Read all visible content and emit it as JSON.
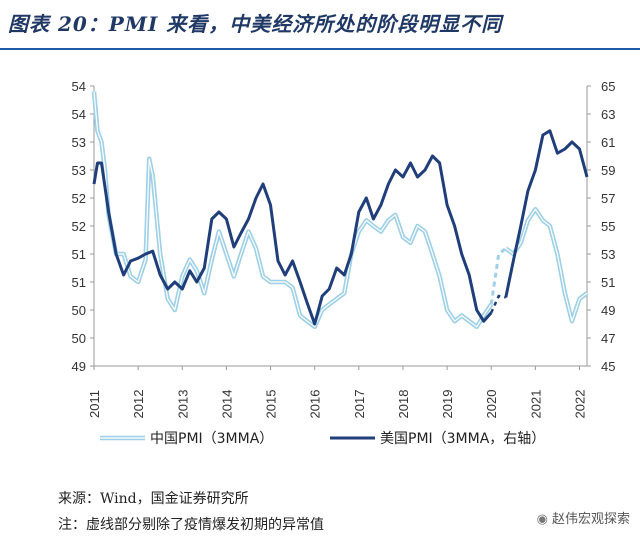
{
  "title": "图表 20：PMI 来看，中美经济所处的阶段明显不同",
  "source": "来源：Wind，国金证券研究所",
  "note": "注：虚线部分剔除了疫情爆发初期的异常值",
  "watermark_account": "赵伟宏观探索",
  "colors": {
    "china": "#9fd0e6",
    "us": "#1f3e7a",
    "title_rule": "#1f5aa6"
  },
  "chart_data": {
    "type": "line",
    "x_ticks": [
      "2011",
      "2012",
      "2013",
      "2014",
      "2015",
      "2016",
      "2017",
      "2018",
      "2019",
      "2020",
      "2021",
      "2022"
    ],
    "left_axis": {
      "ticks": [
        "49",
        "50",
        "50",
        "51",
        "51",
        "52",
        "52",
        "53",
        "53",
        "54",
        "54"
      ],
      "ylim": [
        49,
        54
      ]
    },
    "right_axis": {
      "ticks": [
        "45",
        "47",
        "49",
        "51",
        "53",
        "55",
        "57",
        "59",
        "61",
        "63",
        "65"
      ],
      "ylim": [
        45,
        65
      ]
    },
    "series": [
      {
        "name": "中国PMI（3MMA）",
        "axis": "left",
        "x": [
          2011.0,
          2011.08,
          2011.17,
          2011.25,
          2011.33,
          2011.5,
          2011.67,
          2011.83,
          2012.0,
          2012.17,
          2012.25,
          2012.33,
          2012.5,
          2012.67,
          2012.83,
          2013.0,
          2013.17,
          2013.33,
          2013.5,
          2013.67,
          2013.83,
          2014.0,
          2014.17,
          2014.33,
          2014.5,
          2014.67,
          2014.83,
          2015.0,
          2015.17,
          2015.33,
          2015.5,
          2015.67,
          2015.83,
          2016.0,
          2016.17,
          2016.33,
          2016.5,
          2016.67,
          2016.83,
          2017.0,
          2017.17,
          2017.33,
          2017.5,
          2017.67,
          2017.83,
          2018.0,
          2018.17,
          2018.33,
          2018.5,
          2018.67,
          2018.83,
          2019.0,
          2019.17,
          2019.33,
          2019.5,
          2019.67,
          2019.83,
          2020.0
        ],
        "y": [
          53.9,
          53.2,
          53.0,
          52.5,
          51.7,
          51.0,
          51.0,
          50.6,
          50.5,
          50.9,
          52.7,
          52.4,
          51.0,
          50.2,
          50.0,
          50.6,
          50.9,
          50.7,
          50.3,
          50.9,
          51.4,
          51.0,
          50.6,
          51.0,
          51.4,
          51.1,
          50.6,
          50.5,
          50.5,
          50.5,
          50.4,
          49.9,
          49.8,
          49.7,
          50.0,
          50.1,
          50.2,
          50.3,
          51.0,
          51.4,
          51.6,
          51.5,
          51.4,
          51.6,
          51.7,
          51.3,
          51.2,
          51.5,
          51.4,
          51.0,
          50.6,
          50.0,
          49.8,
          49.9,
          49.8,
          49.7,
          49.9,
          50.1
        ],
        "dashed_x": [
          2020.0,
          2020.17,
          2020.33
        ],
        "dashed_y": [
          50.1,
          51.0,
          51.1
        ],
        "x2": [
          2020.33,
          2020.5,
          2020.67,
          2020.83,
          2021.0,
          2021.17,
          2021.33,
          2021.5,
          2021.67,
          2021.83,
          2022.0,
          2022.17
        ],
        "y2": [
          51.1,
          51.0,
          51.2,
          51.6,
          51.8,
          51.6,
          51.5,
          51.0,
          50.3,
          49.8,
          50.2,
          50.3
        ]
      },
      {
        "name": "美国PMI（3MMA，右轴）",
        "axis": "right",
        "x": [
          2011.0,
          2011.08,
          2011.17,
          2011.33,
          2011.5,
          2011.67,
          2011.83,
          2012.0,
          2012.17,
          2012.33,
          2012.5,
          2012.67,
          2012.83,
          2013.0,
          2013.17,
          2013.33,
          2013.5,
          2013.67,
          2013.83,
          2014.0,
          2014.17,
          2014.33,
          2014.5,
          2014.67,
          2014.83,
          2015.0,
          2015.17,
          2015.33,
          2015.5,
          2015.67,
          2015.83,
          2016.0,
          2016.17,
          2016.33,
          2016.5,
          2016.67,
          2016.83,
          2017.0,
          2017.17,
          2017.33,
          2017.5,
          2017.67,
          2017.83,
          2018.0,
          2018.17,
          2018.33,
          2018.5,
          2018.67,
          2018.83,
          2019.0,
          2019.17,
          2019.33,
          2019.5,
          2019.67,
          2019.83,
          2020.0
        ],
        "y": [
          58.0,
          59.5,
          59.5,
          56.0,
          53.0,
          51.5,
          52.5,
          52.7,
          53.0,
          53.2,
          51.5,
          50.5,
          51.0,
          50.5,
          51.8,
          51.0,
          52.0,
          55.5,
          56.0,
          55.5,
          53.5,
          54.5,
          55.5,
          57.0,
          58.0,
          56.5,
          52.5,
          51.5,
          52.5,
          51.0,
          49.5,
          48.0,
          50.0,
          50.5,
          52.0,
          51.5,
          53.0,
          56.0,
          57.0,
          55.5,
          56.5,
          58.0,
          59.0,
          58.5,
          59.5,
          58.5,
          59.0,
          60.0,
          59.5,
          56.5,
          55.0,
          53.0,
          51.5,
          49.0,
          48.2,
          48.8
        ],
        "dashed_x": [
          2020.0,
          2020.17,
          2020.33
        ],
        "dashed_y": [
          48.8,
          50.0,
          49.9
        ],
        "x2": [
          2020.33,
          2020.5,
          2020.67,
          2020.83,
          2021.0,
          2021.17,
          2021.33,
          2021.5,
          2021.67,
          2021.83,
          2022.0,
          2022.17
        ],
        "y2": [
          49.9,
          52.5,
          55.0,
          57.5,
          59.0,
          61.5,
          61.8,
          60.2,
          60.5,
          61.0,
          60.5,
          58.5
        ]
      }
    ]
  }
}
